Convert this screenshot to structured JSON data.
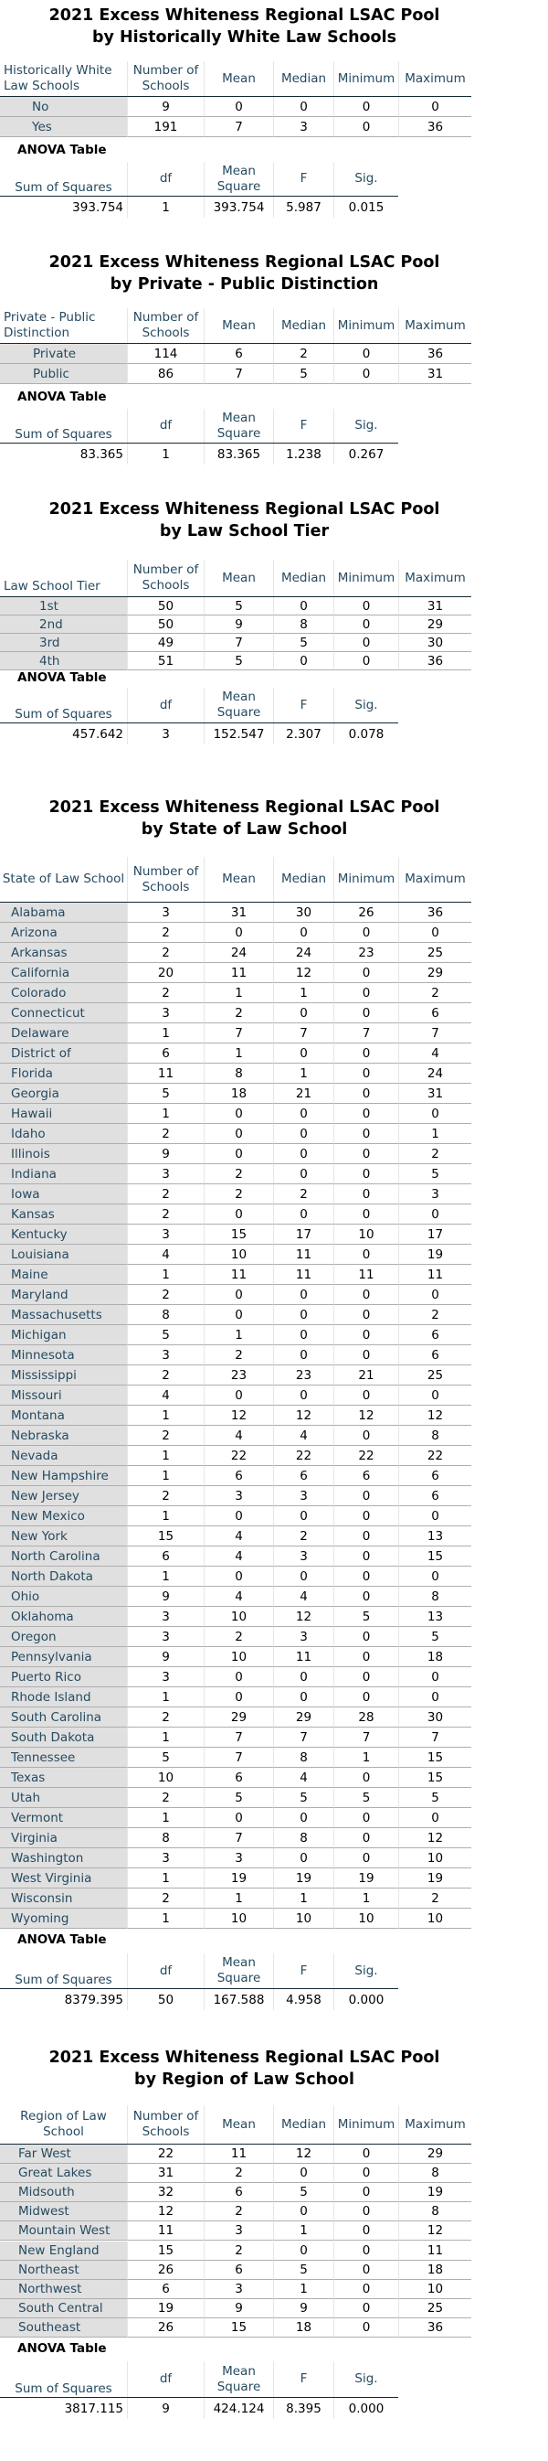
{
  "columns": [
    "Number of Schools",
    "Mean",
    "Median",
    "Minimum",
    "Maximum"
  ],
  "anova_title": "ANOVA Table",
  "anova_columns": [
    "Sum of Squares",
    "df",
    "Mean Square",
    "F",
    "Sig."
  ],
  "sections": [
    {
      "title_line1": "2021 Excess Whiteness Regional LSAC Pool",
      "title_line2": "by Historically White Law Schools",
      "group_header": "Historically White Law Schools",
      "rows": [
        [
          "No",
          "9",
          "0",
          "0",
          "0",
          "0"
        ],
        [
          "Yes",
          "191",
          "7",
          "3",
          "0",
          "36"
        ]
      ],
      "anova": [
        "393.754",
        "1",
        "393.754",
        "5.987",
        "0.015"
      ]
    },
    {
      "title_line1": "2021 Excess Whiteness Regional LSAC Pool",
      "title_line2": "by Private - Public Distinction",
      "group_header": "Private - Public Distinction",
      "rows": [
        [
          "Private",
          "114",
          "6",
          "2",
          "0",
          "36"
        ],
        [
          "Public",
          "86",
          "7",
          "5",
          "0",
          "31"
        ]
      ],
      "anova": [
        "83.365",
        "1",
        "83.365",
        "1.238",
        "0.267"
      ]
    },
    {
      "title_line1": "2021 Excess Whiteness Regional LSAC Pool",
      "title_line2": "by Law School Tier",
      "group_header": "Law School Tier",
      "rows": [
        [
          "1st",
          "50",
          "5",
          "0",
          "0",
          "31"
        ],
        [
          "2nd",
          "50",
          "9",
          "8",
          "0",
          "29"
        ],
        [
          "3rd",
          "49",
          "7",
          "5",
          "0",
          "30"
        ],
        [
          "4th",
          "51",
          "5",
          "0",
          "0",
          "36"
        ]
      ],
      "anova": [
        "457.642",
        "3",
        "152.547",
        "2.307",
        "0.078"
      ]
    },
    {
      "title_line1": "2021 Excess Whiteness Regional LSAC Pool",
      "title_line2": "by State of Law School",
      "group_header": "State of Law School",
      "rows": [
        [
          "Alabama",
          "3",
          "31",
          "30",
          "26",
          "36"
        ],
        [
          "Arizona",
          "2",
          "0",
          "0",
          "0",
          "0"
        ],
        [
          "Arkansas",
          "2",
          "24",
          "24",
          "23",
          "25"
        ],
        [
          "California",
          "20",
          "11",
          "12",
          "0",
          "29"
        ],
        [
          "Colorado",
          "2",
          "1",
          "1",
          "0",
          "2"
        ],
        [
          "Connecticut",
          "3",
          "2",
          "0",
          "0",
          "6"
        ],
        [
          "Delaware",
          "1",
          "7",
          "7",
          "7",
          "7"
        ],
        [
          "District of",
          "6",
          "1",
          "0",
          "0",
          "4"
        ],
        [
          "Florida",
          "11",
          "8",
          "1",
          "0",
          "24"
        ],
        [
          "Georgia",
          "5",
          "18",
          "21",
          "0",
          "31"
        ],
        [
          "Hawaii",
          "1",
          "0",
          "0",
          "0",
          "0"
        ],
        [
          "Idaho",
          "2",
          "0",
          "0",
          "0",
          "1"
        ],
        [
          "Illinois",
          "9",
          "0",
          "0",
          "0",
          "2"
        ],
        [
          "Indiana",
          "3",
          "2",
          "0",
          "0",
          "5"
        ],
        [
          "Iowa",
          "2",
          "2",
          "2",
          "0",
          "3"
        ],
        [
          "Kansas",
          "2",
          "0",
          "0",
          "0",
          "0"
        ],
        [
          "Kentucky",
          "3",
          "15",
          "17",
          "10",
          "17"
        ],
        [
          "Louisiana",
          "4",
          "10",
          "11",
          "0",
          "19"
        ],
        [
          "Maine",
          "1",
          "11",
          "11",
          "11",
          "11"
        ],
        [
          "Maryland",
          "2",
          "0",
          "0",
          "0",
          "0"
        ],
        [
          "Massachusetts",
          "8",
          "0",
          "0",
          "0",
          "2"
        ],
        [
          "Michigan",
          "5",
          "1",
          "0",
          "0",
          "6"
        ],
        [
          "Minnesota",
          "3",
          "2",
          "0",
          "0",
          "6"
        ],
        [
          "Mississippi",
          "2",
          "23",
          "23",
          "21",
          "25"
        ],
        [
          "Missouri",
          "4",
          "0",
          "0",
          "0",
          "0"
        ],
        [
          "Montana",
          "1",
          "12",
          "12",
          "12",
          "12"
        ],
        [
          "Nebraska",
          "2",
          "4",
          "4",
          "0",
          "8"
        ],
        [
          "Nevada",
          "1",
          "22",
          "22",
          "22",
          "22"
        ],
        [
          "New Hampshire",
          "1",
          "6",
          "6",
          "6",
          "6"
        ],
        [
          "New Jersey",
          "2",
          "3",
          "3",
          "0",
          "6"
        ],
        [
          "New Mexico",
          "1",
          "0",
          "0",
          "0",
          "0"
        ],
        [
          "New York",
          "15",
          "4",
          "2",
          "0",
          "13"
        ],
        [
          "North Carolina",
          "6",
          "4",
          "3",
          "0",
          "15"
        ],
        [
          "North Dakota",
          "1",
          "0",
          "0",
          "0",
          "0"
        ],
        [
          "Ohio",
          "9",
          "4",
          "4",
          "0",
          "8"
        ],
        [
          "Oklahoma",
          "3",
          "10",
          "12",
          "5",
          "13"
        ],
        [
          "Oregon",
          "3",
          "2",
          "3",
          "0",
          "5"
        ],
        [
          "Pennsylvania",
          "9",
          "10",
          "11",
          "0",
          "18"
        ],
        [
          "Puerto Rico",
          "3",
          "0",
          "0",
          "0",
          "0"
        ],
        [
          "Rhode Island",
          "1",
          "0",
          "0",
          "0",
          "0"
        ],
        [
          "South Carolina",
          "2",
          "29",
          "29",
          "28",
          "30"
        ],
        [
          "South Dakota",
          "1",
          "7",
          "7",
          "7",
          "7"
        ],
        [
          "Tennessee",
          "5",
          "7",
          "8",
          "1",
          "15"
        ],
        [
          "Texas",
          "10",
          "6",
          "4",
          "0",
          "15"
        ],
        [
          "Utah",
          "2",
          "5",
          "5",
          "5",
          "5"
        ],
        [
          "Vermont",
          "1",
          "0",
          "0",
          "0",
          "0"
        ],
        [
          "Virginia",
          "8",
          "7",
          "8",
          "0",
          "12"
        ],
        [
          "Washington",
          "3",
          "3",
          "0",
          "0",
          "10"
        ],
        [
          "West Virginia",
          "1",
          "19",
          "19",
          "19",
          "19"
        ],
        [
          "Wisconsin",
          "2",
          "1",
          "1",
          "1",
          "2"
        ],
        [
          "Wyoming",
          "1",
          "10",
          "10",
          "10",
          "10"
        ]
      ],
      "anova": [
        "8379.395",
        "50",
        "167.588",
        "4.958",
        "0.000"
      ]
    },
    {
      "title_line1": "2021 Excess Whiteness Regional LSAC Pool",
      "title_line2": "by Region of Law School",
      "group_header": "Region of Law School",
      "rows": [
        [
          "Far West",
          "22",
          "11",
          "12",
          "0",
          "29"
        ],
        [
          "Great Lakes",
          "31",
          "2",
          "0",
          "0",
          "8"
        ],
        [
          "Midsouth",
          "32",
          "6",
          "5",
          "0",
          "19"
        ],
        [
          "Midwest",
          "12",
          "2",
          "0",
          "0",
          "8"
        ],
        [
          "Mountain West",
          "11",
          "3",
          "1",
          "0",
          "12"
        ],
        [
          "New England",
          "15",
          "2",
          "0",
          "0",
          "11"
        ],
        [
          "Northeast",
          "26",
          "6",
          "5",
          "0",
          "18"
        ],
        [
          "Northwest",
          "6",
          "3",
          "1",
          "0",
          "10"
        ],
        [
          "South Central",
          "19",
          "9",
          "9",
          "0",
          "25"
        ],
        [
          "Southeast",
          "26",
          "15",
          "18",
          "0",
          "36"
        ]
      ],
      "anova": [
        "3817.115",
        "9",
        "424.124",
        "8.395",
        "0.000"
      ]
    }
  ]
}
